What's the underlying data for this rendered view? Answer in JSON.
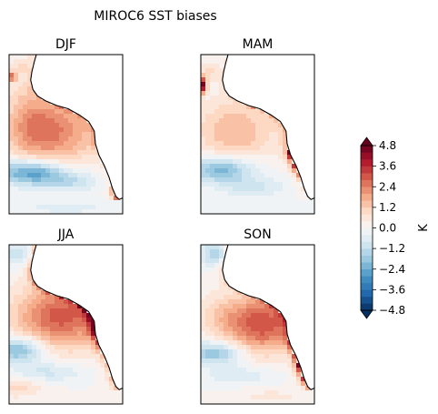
{
  "chart_data": {
    "type": "heatmap",
    "title": "MIROC6 SST biases",
    "panels": [
      {
        "title": "DJF",
        "pattern": "djf"
      },
      {
        "title": "MAM",
        "pattern": "mam"
      },
      {
        "title": "JJA",
        "pattern": "jja"
      },
      {
        "title": "SON",
        "pattern": "son"
      }
    ],
    "colorbar": {
      "label": "K",
      "min": -4.8,
      "max": 4.8,
      "level_step": 0.4,
      "extend": "both",
      "ticks": [
        "4.8",
        "3.6",
        "2.4",
        "1.2",
        "0.0",
        "−1.2",
        "−2.4",
        "−3.6",
        "−4.8"
      ],
      "tick_values": [
        4.8,
        3.6,
        2.4,
        1.2,
        0.0,
        -1.2,
        -2.4,
        -3.6,
        -4.8
      ],
      "colormap": "RdBu_r"
    },
    "land_color": "#ffffff",
    "coastline_color": "#000000"
  }
}
